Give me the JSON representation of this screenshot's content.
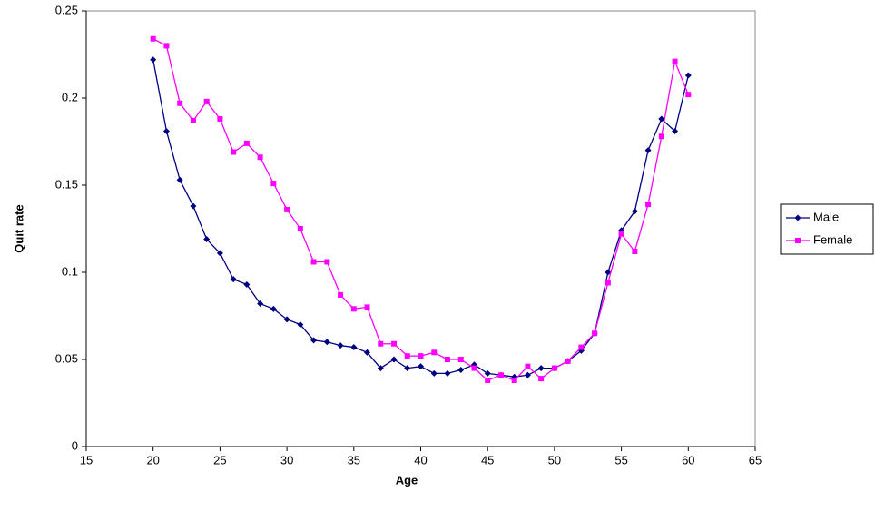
{
  "chart_data": {
    "type": "line",
    "xlabel": "Age",
    "ylabel": "Quit rate",
    "x": [
      20,
      21,
      22,
      23,
      24,
      25,
      26,
      27,
      28,
      29,
      30,
      31,
      32,
      33,
      34,
      35,
      36,
      37,
      38,
      39,
      40,
      41,
      42,
      43,
      44,
      45,
      46,
      47,
      48,
      49,
      50,
      51,
      52,
      53,
      54,
      55,
      56,
      57,
      58,
      59,
      60
    ],
    "series": [
      {
        "name": "Male",
        "color": "#000080",
        "marker": "diamond",
        "values": [
          0.222,
          0.181,
          0.153,
          0.138,
          0.119,
          0.111,
          0.096,
          0.093,
          0.082,
          0.079,
          0.073,
          0.07,
          0.061,
          0.06,
          0.058,
          0.057,
          0.054,
          0.045,
          0.05,
          0.045,
          0.046,
          0.042,
          0.042,
          0.044,
          0.047,
          0.042,
          0.041,
          0.04,
          0.041,
          0.045,
          0.045,
          0.049,
          0.055,
          0.065,
          0.1,
          0.124,
          0.135,
          0.17,
          0.188,
          0.181,
          0.213
        ]
      },
      {
        "name": "Female",
        "color": "#ff00ff",
        "marker": "square",
        "values": [
          0.234,
          0.23,
          0.197,
          0.187,
          0.198,
          0.188,
          0.169,
          0.174,
          0.166,
          0.151,
          0.136,
          0.125,
          0.106,
          0.106,
          0.087,
          0.079,
          0.08,
          0.059,
          0.059,
          0.052,
          0.052,
          0.054,
          0.05,
          0.05,
          0.045,
          0.038,
          0.041,
          0.038,
          0.046,
          0.039,
          0.045,
          0.049,
          0.057,
          0.065,
          0.094,
          0.122,
          0.112,
          0.139,
          0.178,
          0.221,
          0.202
        ]
      }
    ],
    "xlim": [
      15,
      65
    ],
    "xticks": [
      15,
      20,
      25,
      30,
      35,
      40,
      45,
      50,
      55,
      60,
      65
    ],
    "ylim": [
      0,
      0.25
    ],
    "yticks": [
      0,
      0.05,
      0.1,
      0.15,
      0.2,
      0.25
    ],
    "grid": false,
    "legend": "right"
  }
}
